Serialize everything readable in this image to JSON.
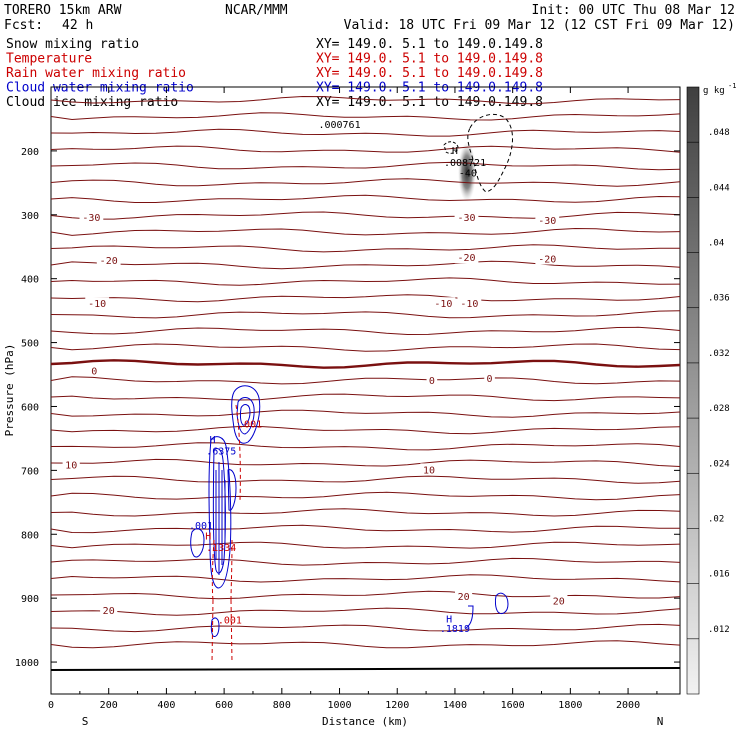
{
  "header": {
    "model": "TORERO  15km ARW",
    "center": "NCAR/MMM",
    "init": "Init: 00 UTC Thu 08 Mar 12",
    "fcst_label": "Fcst:",
    "fcst_value": "42 h",
    "valid": "Valid: 18 UTC Fri 09 Mar 12 (12 CST Fri 09 Mar 12)"
  },
  "legend": [
    {
      "name": "Snow mixing ratio",
      "color": "#000000",
      "xy": "XY= 149.0.  5.1 to 149.0.149.8"
    },
    {
      "name": "Temperature",
      "color": "#cc0000",
      "xy": "XY= 149.0.  5.1 to 149.0.149.8"
    },
    {
      "name": "Rain water mixing ratio",
      "color": "#cc0000",
      "xy": "XY= 149.0.  5.1 to 149.0.149.8"
    },
    {
      "name": "Cloud water mixing ratio",
      "color": "#0000cc",
      "xy": "XY= 149.0.  5.1 to 149.0.149.8"
    },
    {
      "name": "Cloud ice mixing ratio",
      "color": "#000000",
      "xy": "XY= 149.0.  5.1 to 149.0.149.8"
    }
  ],
  "chart_data": {
    "type": "cross-section",
    "xlabel": "Distance (km)",
    "ylabel": "Pressure (hPa)",
    "xlim": [
      0,
      2180
    ],
    "ylim": [
      1050,
      100
    ],
    "x_ticks": [
      0,
      200,
      400,
      600,
      800,
      1000,
      1200,
      1400,
      1600,
      1800,
      2000
    ],
    "y_ticks": [
      200,
      300,
      400,
      500,
      600,
      700,
      800,
      900,
      1000
    ],
    "end_labels": {
      "left": "S",
      "right": "N"
    },
    "colorbar": {
      "units": "g kg",
      "units_exp": "-1",
      "labels": [
        ".048",
        ".044",
        ".04",
        ".036",
        ".032",
        ".028",
        ".024",
        ".02",
        ".016",
        ".012"
      ]
    },
    "temperature_labels": [
      {
        "text": "-30",
        "x": 140,
        "p": 305
      },
      {
        "text": "-30",
        "x": 1440,
        "p": 305
      },
      {
        "text": "-30",
        "x": 1720,
        "p": 310
      },
      {
        "text": "-20",
        "x": 200,
        "p": 372
      },
      {
        "text": "-20",
        "x": 1440,
        "p": 368
      },
      {
        "text": "-20",
        "x": 1720,
        "p": 370
      },
      {
        "text": "-10",
        "x": 160,
        "p": 440
      },
      {
        "text": "-10",
        "x": 1360,
        "p": 440
      },
      {
        "text": "-10",
        "x": 1450,
        "p": 440
      },
      {
        "text": "0",
        "x": 150,
        "p": 545
      },
      {
        "text": "0",
        "x": 1320,
        "p": 560
      },
      {
        "text": "0",
        "x": 1520,
        "p": 557
      },
      {
        "text": "10",
        "x": 70,
        "p": 692
      },
      {
        "text": "10",
        "x": 1310,
        "p": 700
      },
      {
        "text": "20",
        "x": 200,
        "p": 920
      },
      {
        "text": "20",
        "x": 1430,
        "p": 898
      },
      {
        "text": "20",
        "x": 1760,
        "p": 905
      }
    ],
    "max_labels": [
      {
        "text": ".000761",
        "x": 1000,
        "p": 164,
        "color": "#000000"
      },
      {
        "text": "H",
        "x": 1400,
        "p": 205,
        "color": "#000000"
      },
      {
        "text": ".008721",
        "x": 1435,
        "p": 224,
        "color": "#000000"
      },
      {
        "text": "-40",
        "x": 1445,
        "p": 240,
        "color": "#000000"
      },
      {
        "text": ".001",
        "x": 690,
        "p": 633,
        "color": "#cc0000"
      },
      {
        "text": "H",
        "x": 560,
        "p": 657,
        "color": "#0000cc"
      },
      {
        "text": ".6375",
        "x": 590,
        "p": 675,
        "color": "#0000cc"
      },
      {
        "text": ".001",
        "x": 520,
        "p": 792,
        "color": "#0000cc"
      },
      {
        "text": "H",
        "x": 545,
        "p": 808,
        "color": "#cc0000"
      },
      {
        "text": ".1334",
        "x": 590,
        "p": 826,
        "color": "#cc0000"
      },
      {
        "text": "H",
        "x": 1380,
        "p": 938,
        "color": "#0000cc"
      },
      {
        "text": ".1819",
        "x": 1400,
        "p": 953,
        "color": "#0000cc"
      },
      {
        "text": ".001",
        "x": 620,
        "p": 940,
        "color": "#cc0000"
      }
    ]
  }
}
